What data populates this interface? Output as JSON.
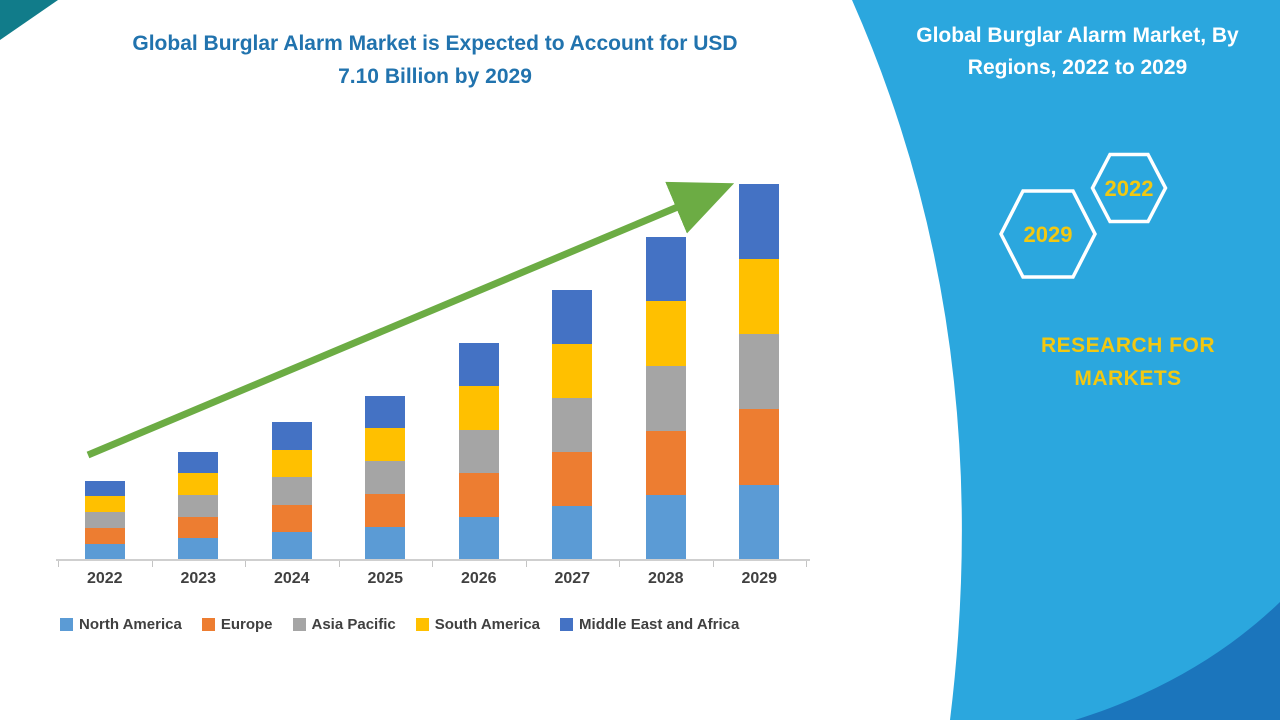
{
  "page": {
    "title_line1": "Global Burglar Alarm Market is Expected to Account for USD",
    "title_line2": "7.10 Billion by 2029",
    "title_color": "#2173AE",
    "corner_color": "#117C8A"
  },
  "side_panel": {
    "title": "Global Burglar Alarm Market, By Regions, 2022 to 2029",
    "hexagons": [
      {
        "label": "2029"
      },
      {
        "label": "2022"
      }
    ],
    "brand_line1": "RESEARCH FOR",
    "brand_line2": "MARKETS",
    "bg_color": "#2BA7DE",
    "corner_dark_color": "#1B75BC",
    "accent_text_color": "#F2C811",
    "hex_outline_color": "#ffffff"
  },
  "chart_data": {
    "type": "bar",
    "stacked": true,
    "title": "Global Burglar Alarm Market is Expected to Account for USD 7.10 Billion by 2029",
    "xlabel": "",
    "ylabel": "",
    "ylim": [
      0,
      7.5
    ],
    "grid": false,
    "legend_position": "bottom",
    "categories": [
      "2022",
      "2023",
      "2024",
      "2025",
      "2026",
      "2027",
      "2028",
      "2029"
    ],
    "series": [
      {
        "name": "North America",
        "color": "#5B9BD5",
        "values": [
          0.3,
          0.41,
          0.52,
          0.62,
          0.82,
          1.02,
          1.22,
          1.42
        ]
      },
      {
        "name": "Europe",
        "color": "#ED7D31",
        "values": [
          0.3,
          0.41,
          0.52,
          0.62,
          0.82,
          1.02,
          1.22,
          1.42
        ]
      },
      {
        "name": "Asia Pacific",
        "color": "#A5A5A5",
        "values": [
          0.3,
          0.41,
          0.52,
          0.62,
          0.82,
          1.02,
          1.22,
          1.42
        ]
      },
      {
        "name": "South America",
        "color": "#FFC000",
        "values": [
          0.3,
          0.41,
          0.52,
          0.62,
          0.82,
          1.02,
          1.22,
          1.42
        ]
      },
      {
        "name": "Middle East and Africa",
        "color": "#4472C4",
        "values": [
          0.3,
          0.41,
          0.52,
          0.62,
          0.82,
          1.02,
          1.22,
          1.42
        ]
      }
    ],
    "totals": [
      1.5,
      2.05,
      2.6,
      3.1,
      4.1,
      5.1,
      6.1,
      7.1
    ],
    "trend_arrow": {
      "color": "#6CAC44",
      "direction": "up"
    }
  }
}
